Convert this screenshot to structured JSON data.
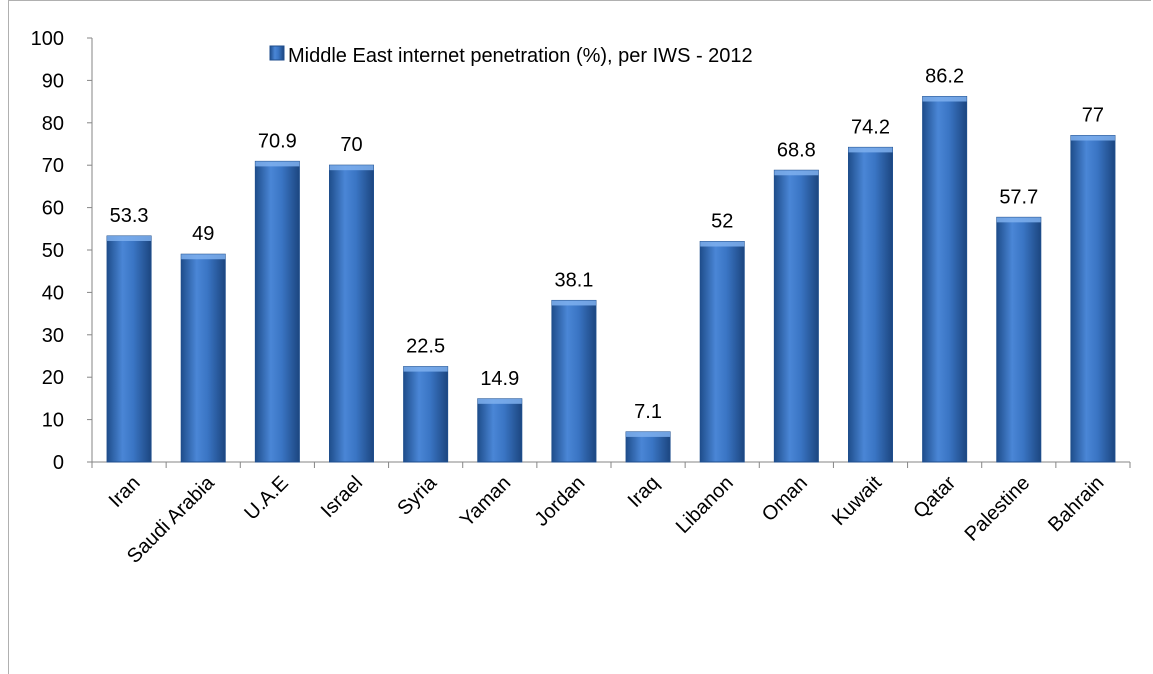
{
  "chart_data": {
    "type": "bar",
    "categories": [
      "Iran",
      "Saudi Arabia",
      "U.A.E",
      "Israel",
      "Syria",
      "Yaman",
      "Jordan",
      "Iraq",
      "Libanon",
      "Oman",
      "Kuwait",
      "Qatar",
      "Palestine",
      "Bahrain"
    ],
    "series": [
      {
        "name": "Middle East internet penetration (%), per IWS - 2012",
        "values": [
          53.3,
          49,
          70.9,
          70,
          22.5,
          14.9,
          38.1,
          7.1,
          52,
          68.8,
          74.2,
          86.2,
          57.7,
          77
        ]
      }
    ],
    "data_labels": [
      "53.3",
      "49",
      "70.9",
      "70",
      "22.5",
      "14.9",
      "38.1",
      "7.1",
      "52",
      "68.8",
      "74.2",
      "86.2",
      "57.7",
      "77"
    ],
    "y_ticks": [
      "0",
      "10",
      "20",
      "30",
      "40",
      "50",
      "60",
      "70",
      "80",
      "90",
      "100"
    ],
    "ylim": [
      0,
      100
    ],
    "title": "",
    "xlabel": "",
    "ylabel": "",
    "grid": false,
    "legend_position": "top",
    "colors": {
      "bar_light": "#6a9ee0",
      "bar_main": "#3a75c4",
      "bar_dark": "#1f4e8c",
      "axis": "#868686"
    }
  }
}
